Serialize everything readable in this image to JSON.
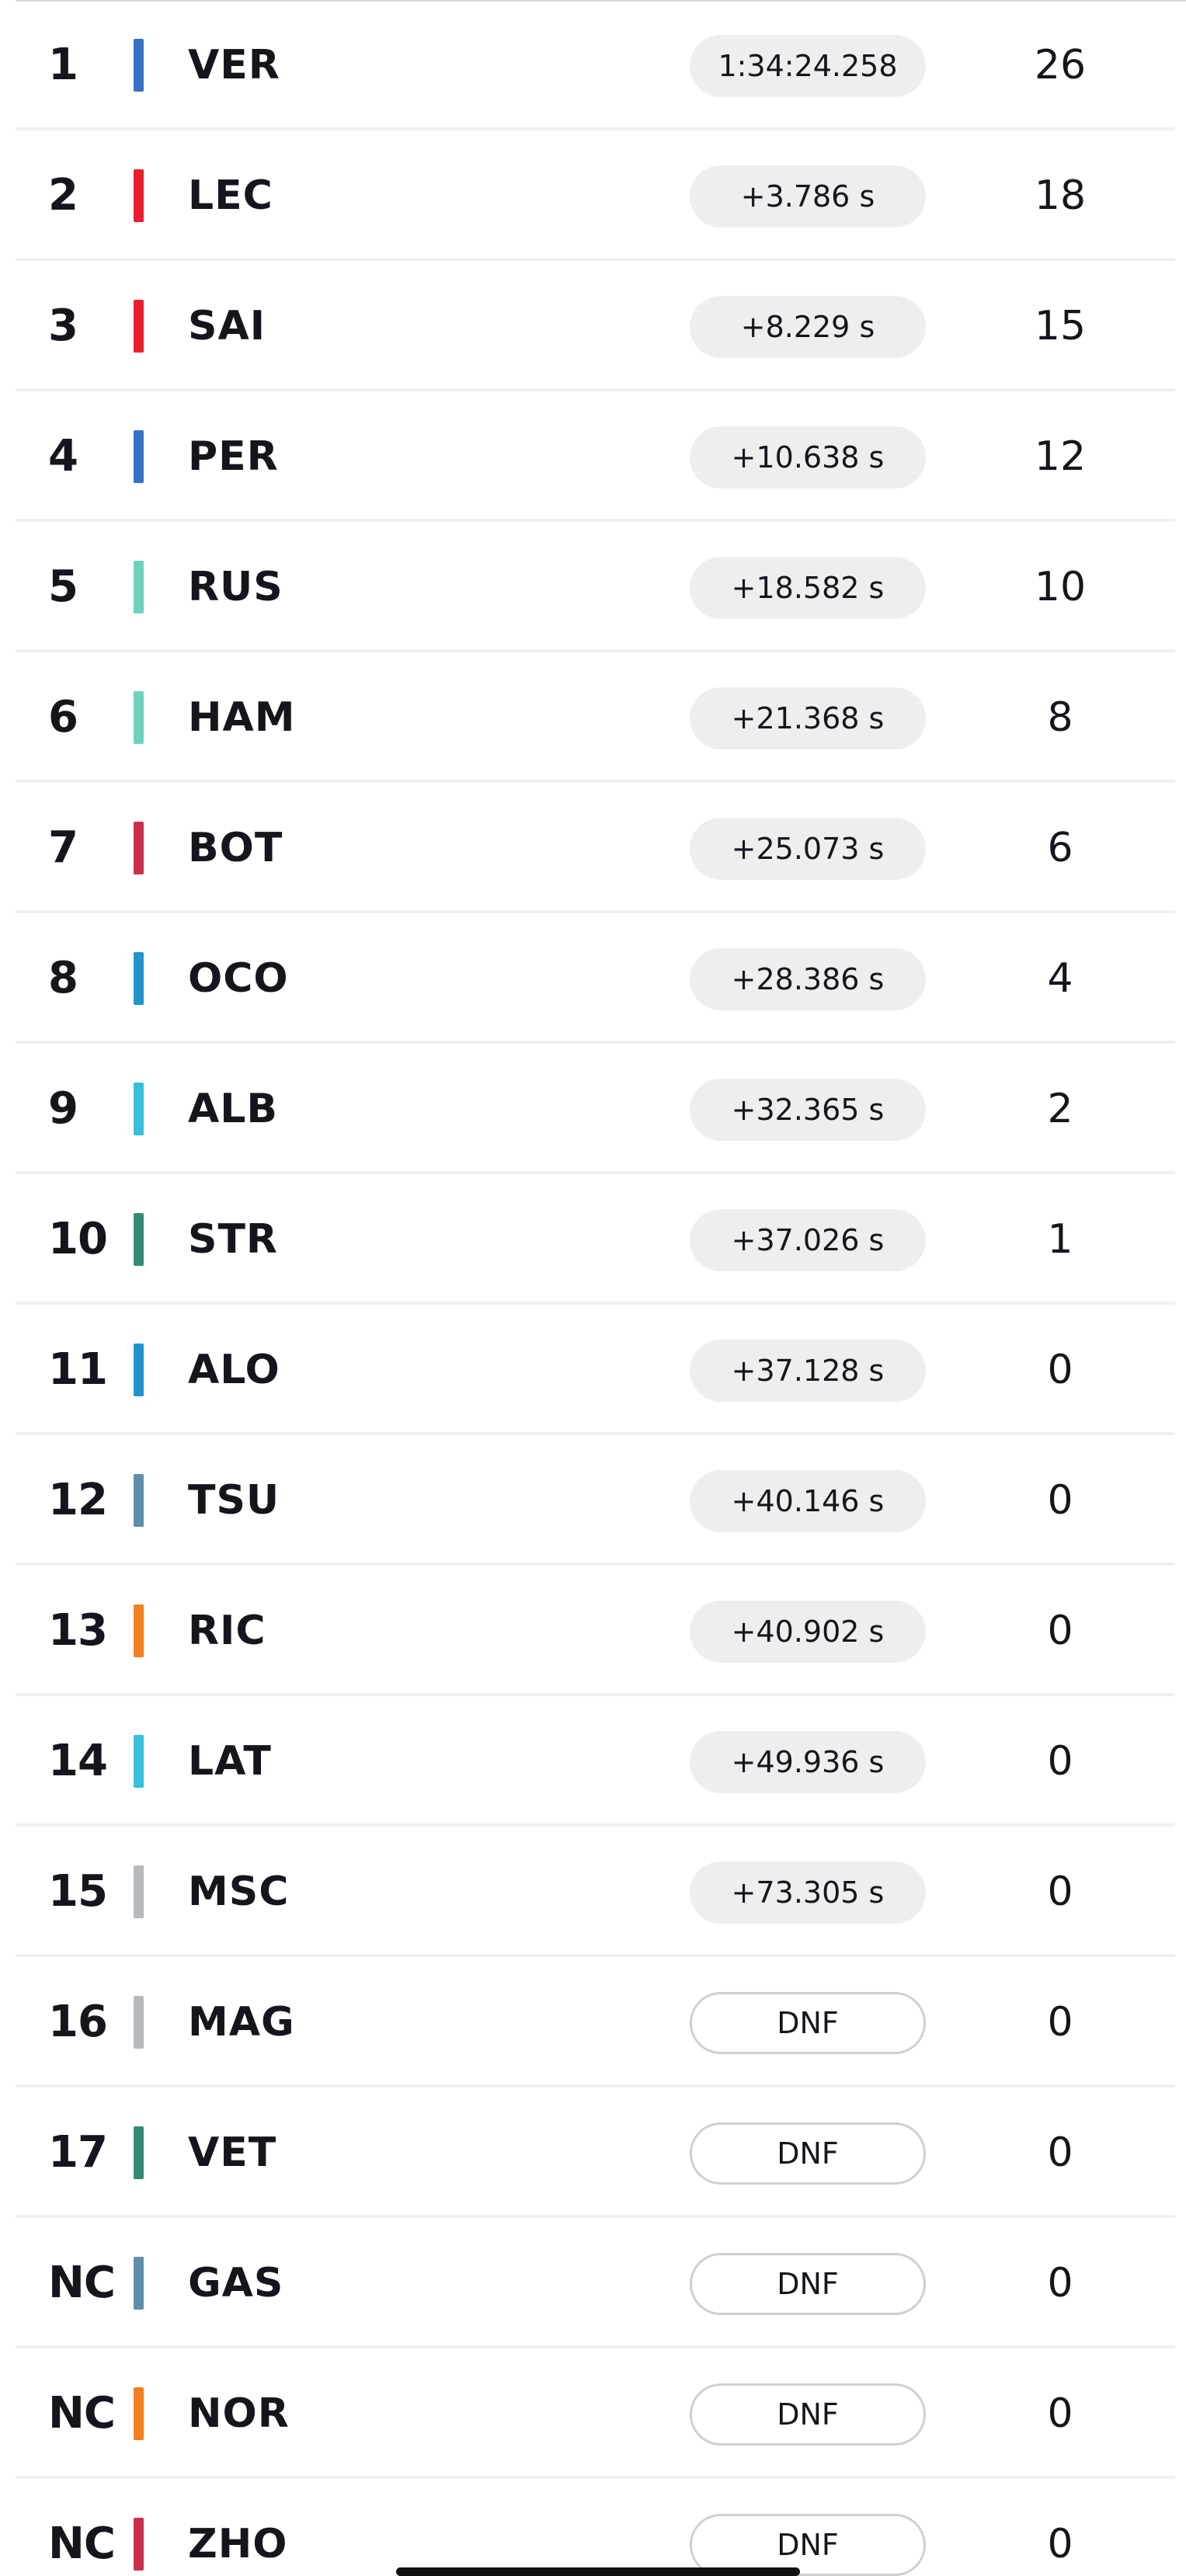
{
  "results": [
    {
      "pos": "1",
      "driver": "VER",
      "gap": "1:34:24.258",
      "points": "26",
      "team_color": "#3671c6",
      "finished": true
    },
    {
      "pos": "2",
      "driver": "LEC",
      "gap": "+3.786 s",
      "points": "18",
      "team_color": "#e8202e",
      "finished": true
    },
    {
      "pos": "3",
      "driver": "SAI",
      "gap": "+8.229 s",
      "points": "15",
      "team_color": "#e8202e",
      "finished": true
    },
    {
      "pos": "4",
      "driver": "PER",
      "gap": "+10.638 s",
      "points": "12",
      "team_color": "#3671c6",
      "finished": true
    },
    {
      "pos": "5",
      "driver": "RUS",
      "gap": "+18.582 s",
      "points": "10",
      "team_color": "#6cd3bf",
      "finished": true
    },
    {
      "pos": "6",
      "driver": "HAM",
      "gap": "+21.368 s",
      "points": "8",
      "team_color": "#6cd3bf",
      "finished": true
    },
    {
      "pos": "7",
      "driver": "BOT",
      "gap": "+25.073 s",
      "points": "6",
      "team_color": "#c92d4b",
      "finished": true
    },
    {
      "pos": "8",
      "driver": "OCO",
      "gap": "+28.386 s",
      "points": "4",
      "team_color": "#2293d1",
      "finished": true
    },
    {
      "pos": "9",
      "driver": "ALB",
      "gap": "+32.365 s",
      "points": "2",
      "team_color": "#37bedd",
      "finished": true
    },
    {
      "pos": "10",
      "driver": "STR",
      "gap": "+37.026 s",
      "points": "1",
      "team_color": "#358c75",
      "finished": true
    },
    {
      "pos": "11",
      "driver": "ALO",
      "gap": "+37.128 s",
      "points": "0",
      "team_color": "#2293d1",
      "finished": true
    },
    {
      "pos": "12",
      "driver": "TSU",
      "gap": "+40.146 s",
      "points": "0",
      "team_color": "#5e8faa",
      "finished": true
    },
    {
      "pos": "13",
      "driver": "RIC",
      "gap": "+40.902 s",
      "points": "0",
      "team_color": "#f58020",
      "finished": true
    },
    {
      "pos": "14",
      "driver": "LAT",
      "gap": "+49.936 s",
      "points": "0",
      "team_color": "#37bedd",
      "finished": true
    },
    {
      "pos": "15",
      "driver": "MSC",
      "gap": "+73.305 s",
      "points": "0",
      "team_color": "#b6babd",
      "finished": true
    },
    {
      "pos": "16",
      "driver": "MAG",
      "gap": "DNF",
      "points": "0",
      "team_color": "#b6babd",
      "finished": false
    },
    {
      "pos": "17",
      "driver": "VET",
      "gap": "DNF",
      "points": "0",
      "team_color": "#358c75",
      "finished": false
    },
    {
      "pos": "NC",
      "driver": "GAS",
      "gap": "DNF",
      "points": "0",
      "team_color": "#5e8faa",
      "finished": false
    },
    {
      "pos": "NC",
      "driver": "NOR",
      "gap": "DNF",
      "points": "0",
      "team_color": "#f58020",
      "finished": false
    },
    {
      "pos": "NC",
      "driver": "ZHO",
      "gap": "DNF",
      "points": "0",
      "team_color": "#c92d4b",
      "finished": false
    }
  ]
}
